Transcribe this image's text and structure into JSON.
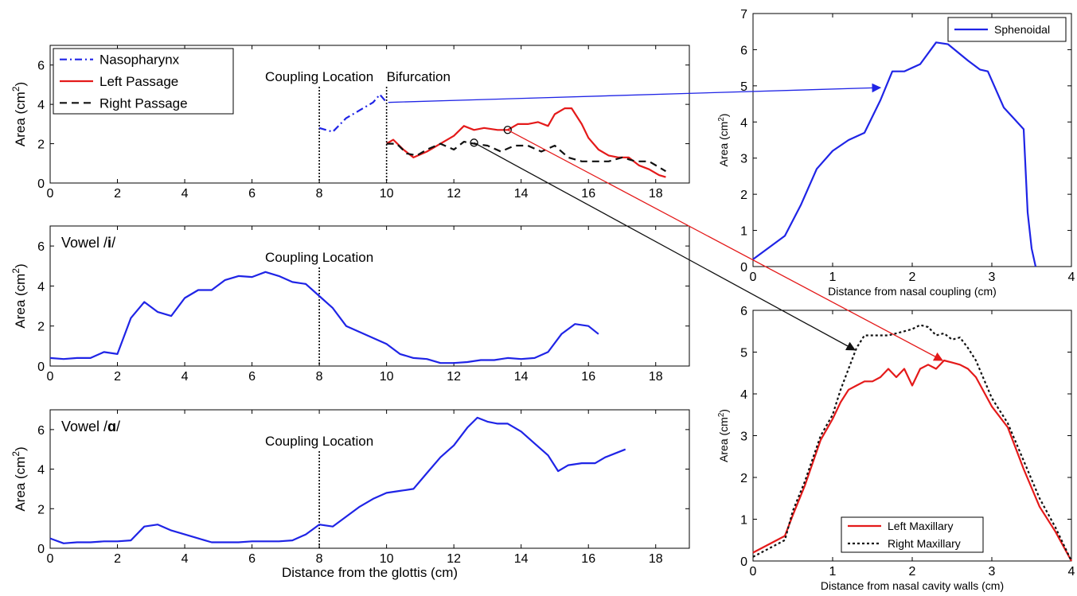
{
  "colors": {
    "blue": "#1f24e6",
    "red": "#e41a1a",
    "black": "#111111",
    "axis": "#000000"
  },
  "chart_data": [
    {
      "id": "nasal",
      "type": "line",
      "xlabel": "",
      "ylabel": "Area (cm",
      "ylabel_sup": "2",
      "ylabel_close": ")",
      "xlim": [
        0,
        19
      ],
      "ylim": [
        0,
        7
      ],
      "xticks": [
        0,
        2,
        4,
        6,
        8,
        10,
        12,
        14,
        16,
        18
      ],
      "yticks": [
        0,
        2,
        4,
        6
      ],
      "legend": "top-left",
      "vlines": [
        {
          "x": 8,
          "label": "Coupling Location"
        },
        {
          "x": 10,
          "label": "Bifurcation"
        }
      ],
      "series": [
        {
          "name": "Nasopharynx",
          "color": "blue",
          "dash": "dashdot",
          "x": [
            8.0,
            8.2,
            8.4,
            8.8,
            9.2,
            9.6,
            9.8,
            10.0
          ],
          "y": [
            2.8,
            2.7,
            2.6,
            3.3,
            3.7,
            4.1,
            4.5,
            4.1
          ]
        },
        {
          "name": "Left Passage",
          "color": "red",
          "dash": "solid",
          "x": [
            10.0,
            10.2,
            10.5,
            10.8,
            11.2,
            11.6,
            12.0,
            12.3,
            12.6,
            12.9,
            13.3,
            13.6,
            13.9,
            14.2,
            14.5,
            14.8,
            15.0,
            15.3,
            15.5,
            15.8,
            16.0,
            16.3,
            16.6,
            16.9,
            17.2,
            17.5,
            17.8,
            18.1,
            18.3
          ],
          "y": [
            2.0,
            2.2,
            1.7,
            1.3,
            1.6,
            2.0,
            2.4,
            2.9,
            2.7,
            2.8,
            2.7,
            2.7,
            3.0,
            3.0,
            3.1,
            2.9,
            3.5,
            3.8,
            3.8,
            3.0,
            2.3,
            1.7,
            1.4,
            1.3,
            1.3,
            0.9,
            0.7,
            0.4,
            0.3
          ]
        },
        {
          "name": "Right Passage",
          "color": "black",
          "dash": "dashed",
          "x": [
            10.0,
            10.3,
            10.6,
            10.9,
            11.2,
            11.6,
            12.0,
            12.3,
            12.6,
            13.0,
            13.4,
            13.8,
            14.2,
            14.6,
            15.0,
            15.4,
            15.8,
            16.2,
            16.6,
            17.0,
            17.4,
            17.8,
            18.1,
            18.3
          ],
          "y": [
            2.0,
            2.0,
            1.5,
            1.4,
            1.7,
            2.0,
            1.7,
            2.1,
            2.0,
            1.9,
            1.6,
            1.9,
            1.9,
            1.6,
            1.9,
            1.3,
            1.1,
            1.1,
            1.1,
            1.3,
            1.1,
            1.1,
            0.8,
            0.6
          ]
        }
      ],
      "markers": [
        {
          "x": 12.6,
          "y": 2.05
        },
        {
          "x": 13.6,
          "y": 2.7
        }
      ]
    },
    {
      "id": "vowel_i",
      "type": "line",
      "annotation": "Vowel /",
      "annotation_bold": "i",
      "annotation_end": "/",
      "xlabel": "",
      "ylabel": "Area (cm",
      "ylabel_sup": "2",
      "ylabel_close": ")",
      "xlim": [
        0,
        19
      ],
      "ylim": [
        0,
        7
      ],
      "xticks": [
        0,
        2,
        4,
        6,
        8,
        10,
        12,
        14,
        16,
        18
      ],
      "yticks": [
        0,
        2,
        4,
        6
      ],
      "vlines": [
        {
          "x": 8,
          "label": "Coupling Location"
        }
      ],
      "series": [
        {
          "color": "blue",
          "dash": "solid",
          "x": [
            0.0,
            0.4,
            0.8,
            1.2,
            1.6,
            2.0,
            2.4,
            2.8,
            3.2,
            3.6,
            4.0,
            4.4,
            4.8,
            5.2,
            5.6,
            6.0,
            6.4,
            6.8,
            7.2,
            7.6,
            8.0,
            8.4,
            8.8,
            9.2,
            9.6,
            10.0,
            10.4,
            10.8,
            11.2,
            11.6,
            12.0,
            12.4,
            12.8,
            13.2,
            13.6,
            14.0,
            14.4,
            14.8,
            15.2,
            15.6,
            16.0,
            16.3
          ],
          "y": [
            0.4,
            0.35,
            0.4,
            0.4,
            0.7,
            0.6,
            2.4,
            3.2,
            2.7,
            2.5,
            3.4,
            3.8,
            3.8,
            4.3,
            4.5,
            4.45,
            4.7,
            4.5,
            4.2,
            4.1,
            3.5,
            2.9,
            2.0,
            1.7,
            1.4,
            1.1,
            0.6,
            0.4,
            0.35,
            0.15,
            0.15,
            0.2,
            0.3,
            0.3,
            0.4,
            0.35,
            0.4,
            0.7,
            1.6,
            2.1,
            2.0,
            1.6
          ]
        }
      ]
    },
    {
      "id": "vowel_a",
      "type": "line",
      "annotation": "Vowel /",
      "annotation_bold": "ɑ",
      "annotation_end": "/",
      "xlabel": "Distance from the glottis (cm)",
      "ylabel": "Area (cm",
      "ylabel_sup": "2",
      "ylabel_close": ")",
      "xlim": [
        0,
        19
      ],
      "ylim": [
        0,
        7
      ],
      "xticks": [
        0,
        2,
        4,
        6,
        8,
        10,
        12,
        14,
        16,
        18
      ],
      "yticks": [
        0,
        2,
        4,
        6
      ],
      "vlines": [
        {
          "x": 8,
          "label": "Coupling Location"
        }
      ],
      "series": [
        {
          "color": "blue",
          "dash": "solid",
          "x": [
            0.0,
            0.4,
            0.8,
            1.2,
            1.6,
            2.0,
            2.4,
            2.8,
            3.2,
            3.6,
            4.0,
            4.4,
            4.8,
            5.2,
            5.6,
            6.0,
            6.4,
            6.8,
            7.2,
            7.6,
            8.0,
            8.4,
            8.8,
            9.2,
            9.6,
            10.0,
            10.4,
            10.8,
            11.2,
            11.6,
            12.0,
            12.4,
            12.7,
            13.0,
            13.3,
            13.6,
            14.0,
            14.4,
            14.8,
            15.1,
            15.4,
            15.8,
            16.2,
            16.5,
            16.8,
            17.1
          ],
          "y": [
            0.5,
            0.25,
            0.3,
            0.3,
            0.35,
            0.35,
            0.4,
            1.1,
            1.2,
            0.9,
            0.7,
            0.5,
            0.3,
            0.3,
            0.3,
            0.35,
            0.35,
            0.35,
            0.4,
            0.7,
            1.2,
            1.1,
            1.6,
            2.1,
            2.5,
            2.8,
            2.9,
            3.0,
            3.8,
            4.6,
            5.2,
            6.1,
            6.6,
            6.4,
            6.3,
            6.3,
            5.9,
            5.3,
            4.7,
            3.9,
            4.2,
            4.3,
            4.3,
            4.6,
            4.8,
            5.0
          ]
        }
      ]
    },
    {
      "id": "sphenoidal",
      "type": "line",
      "xlabel": "Distance from nasal coupling (cm)",
      "ylabel": "Area (cm",
      "ylabel_sup": "2",
      "ylabel_close": ")",
      "xlim": [
        0,
        4
      ],
      "ylim": [
        0,
        7
      ],
      "xticks": [
        0,
        1,
        2,
        3,
        4
      ],
      "yticks": [
        0,
        1,
        2,
        3,
        4,
        5,
        6,
        7
      ],
      "legend": "top-right",
      "series": [
        {
          "name": "Sphenoidal",
          "color": "blue",
          "dash": "solid",
          "x": [
            0.0,
            0.4,
            0.6,
            0.8,
            1.0,
            1.2,
            1.4,
            1.6,
            1.75,
            1.9,
            2.1,
            2.3,
            2.45,
            2.7,
            2.85,
            2.95,
            3.15,
            3.4,
            3.45,
            3.5,
            3.55
          ],
          "y": [
            0.2,
            0.85,
            1.7,
            2.7,
            3.2,
            3.5,
            3.7,
            4.6,
            5.4,
            5.4,
            5.6,
            6.2,
            6.15,
            5.7,
            5.45,
            5.4,
            4.4,
            3.8,
            1.5,
            0.5,
            0.0
          ]
        }
      ]
    },
    {
      "id": "maxillary",
      "type": "line",
      "xlabel": "Distance from nasal cavity walls (cm)",
      "ylabel": "Area (cm",
      "ylabel_sup": "2",
      "ylabel_close": ")",
      "xlim": [
        0,
        4
      ],
      "ylim": [
        0,
        6
      ],
      "xticks": [
        0,
        1,
        2,
        3,
        4
      ],
      "yticks": [
        0,
        1,
        2,
        3,
        4,
        5,
        6
      ],
      "legend": "bottom-center",
      "series": [
        {
          "name": "Left Maxillary",
          "color": "red",
          "dash": "solid",
          "x": [
            0.0,
            0.4,
            0.5,
            0.65,
            0.85,
            1.0,
            1.1,
            1.2,
            1.3,
            1.4,
            1.5,
            1.6,
            1.7,
            1.8,
            1.9,
            2.0,
            2.1,
            2.2,
            2.3,
            2.4,
            2.5,
            2.6,
            2.7,
            2.8,
            3.0,
            3.2,
            3.4,
            3.6,
            3.8,
            4.0
          ],
          "y": [
            0.2,
            0.6,
            1.1,
            1.8,
            2.9,
            3.4,
            3.8,
            4.1,
            4.2,
            4.3,
            4.3,
            4.4,
            4.6,
            4.4,
            4.6,
            4.2,
            4.6,
            4.7,
            4.6,
            4.8,
            4.75,
            4.7,
            4.6,
            4.4,
            3.7,
            3.2,
            2.2,
            1.3,
            0.7,
            0.0
          ]
        },
        {
          "name": "Right Maxillary",
          "color": "black",
          "dash": "dotted",
          "x": [
            0.0,
            0.4,
            0.5,
            0.65,
            0.85,
            1.0,
            1.1,
            1.2,
            1.3,
            1.4,
            1.5,
            1.6,
            1.7,
            1.8,
            1.9,
            2.0,
            2.1,
            2.2,
            2.3,
            2.4,
            2.5,
            2.6,
            2.7,
            2.8,
            3.0,
            3.2,
            3.4,
            3.6,
            3.8,
            4.0
          ],
          "y": [
            0.1,
            0.5,
            1.2,
            1.9,
            3.0,
            3.5,
            4.1,
            4.6,
            5.1,
            5.4,
            5.4,
            5.4,
            5.4,
            5.45,
            5.5,
            5.55,
            5.65,
            5.6,
            5.4,
            5.45,
            5.3,
            5.35,
            5.1,
            4.8,
            3.9,
            3.3,
            2.4,
            1.5,
            0.8,
            0.0
          ]
        }
      ]
    }
  ]
}
